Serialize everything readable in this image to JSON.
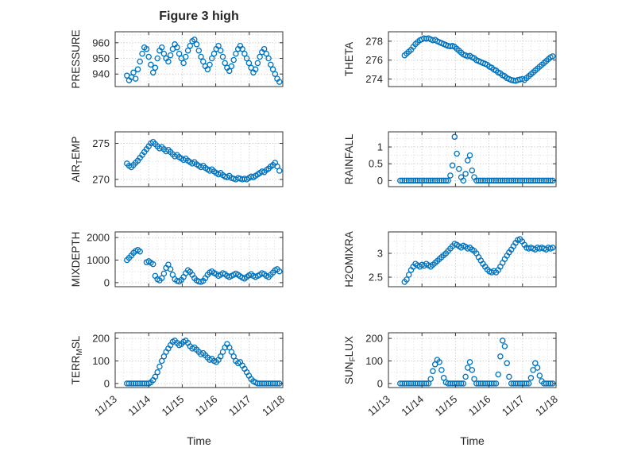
{
  "figure": {
    "title": "Figure 3 high",
    "xlabel": "Time",
    "marker_color": "#0072BD",
    "axis_color": "#333333",
    "text_color": "#262626",
    "grid_color": "#bdbdbd",
    "minor_grid_color": "#dcdcdc",
    "grid_style": "dotted-major-and-minor",
    "legend": "none"
  },
  "chart_data": {
    "type": "scatter",
    "marker": "o",
    "x_axis": {
      "start": 0.35,
      "step": 0.065,
      "lim": [
        0,
        5
      ],
      "tick_values": [
        0,
        1,
        2,
        3,
        4,
        5
      ],
      "tick_labels": [
        "11/13",
        "11/14",
        "11/15",
        "11/16",
        "11/17",
        "11/18"
      ],
      "minor_step": 0.25
    },
    "charts": [
      {
        "name": "PRESSURE",
        "ylabel_segments": [
          {
            "t": "PRESSURE"
          }
        ],
        "ylim": [
          932,
          967
        ],
        "yticks": [
          {
            "v": 940,
            "label": "940"
          },
          {
            "v": 950,
            "label": "950"
          },
          {
            "v": 960,
            "label": "960"
          }
        ],
        "values": [
          939,
          936,
          938,
          941,
          937,
          943,
          948,
          953,
          957,
          956,
          951,
          946,
          941,
          944,
          950,
          955,
          957,
          953,
          950,
          948,
          952,
          956,
          959,
          957,
          953,
          950,
          947,
          951,
          955,
          958,
          961,
          962,
          959,
          955,
          951,
          948,
          945,
          943,
          946,
          950,
          953,
          956,
          958,
          955,
          951,
          947,
          944,
          942,
          945,
          949,
          953,
          956,
          958,
          956,
          953,
          950,
          947,
          944,
          941,
          943,
          947,
          951,
          954,
          956,
          953,
          950,
          946,
          943,
          940,
          937,
          935
        ]
      },
      {
        "name": "THETA",
        "ylabel_segments": [
          {
            "t": "THETA"
          }
        ],
        "ylim": [
          273.2,
          279
        ],
        "yticks": [
          {
            "v": 274,
            "label": "274"
          },
          {
            "v": 276,
            "label": "276"
          },
          {
            "v": 278,
            "label": "278"
          }
        ],
        "values": [
          null,
          null,
          276.5,
          276.7,
          276.9,
          277.1,
          277.4,
          277.7,
          277.9,
          278.1,
          278.2,
          278.3,
          278.25,
          278.3,
          278.2,
          278.1,
          278.15,
          278,
          277.9,
          277.8,
          277.7,
          277.6,
          277.5,
          277.45,
          277.5,
          277.4,
          277.2,
          277,
          276.8,
          276.6,
          276.5,
          276.4,
          276.45,
          276.3,
          276.2,
          276,
          275.9,
          275.8,
          275.7,
          275.6,
          275.5,
          275.3,
          275.2,
          275,
          274.9,
          274.7,
          274.6,
          274.4,
          274.3,
          274.1,
          274,
          273.9,
          273.85,
          273.8,
          273.9,
          273.95,
          274,
          273.9,
          274.1,
          274.3,
          274.5,
          274.7,
          274.9,
          275.1,
          275.3,
          275.5,
          275.7,
          275.9,
          276.1,
          276.3,
          276.4
        ]
      },
      {
        "name": "AIR_TEMP",
        "ylabel_segments": [
          {
            "t": "AIR"
          },
          {
            "t": "T",
            "sub": true
          },
          {
            "t": "EMP"
          }
        ],
        "ylim": [
          269,
          276.6
        ],
        "yticks": [
          {
            "v": 270,
            "label": "270"
          },
          {
            "v": 275,
            "label": "275"
          }
        ],
        "values": [
          272.2,
          271.9,
          271.7,
          272,
          272.3,
          272.6,
          273,
          273.4,
          273.8,
          274.2,
          274.6,
          275,
          275.2,
          274.9,
          274.6,
          274.3,
          274.5,
          274.2,
          273.9,
          274.1,
          273.8,
          273.5,
          273.2,
          273.4,
          273.1,
          272.9,
          272.7,
          272.9,
          272.6,
          272.4,
          272.2,
          272.4,
          272.1,
          271.9,
          271.7,
          271.9,
          271.6,
          271.4,
          271.2,
          271.4,
          271.1,
          270.9,
          270.7,
          270.9,
          270.6,
          270.4,
          270.3,
          270.5,
          270.2,
          270.1,
          270,
          270.2,
          270.1,
          270,
          270.1,
          270,
          270.2,
          270.4,
          270.3,
          270.5,
          270.7,
          270.9,
          271.1,
          271,
          271.3,
          271.5,
          271.8,
          272,
          272.3,
          271.8,
          271.2
        ]
      },
      {
        "name": "RAINFALL",
        "ylabel_segments": [
          {
            "t": "RAINFALL"
          }
        ],
        "ylim": [
          -0.18,
          1.45
        ],
        "yticks": [
          {
            "v": 0,
            "label": "0"
          },
          {
            "v": 0.5,
            "label": "0.5"
          },
          {
            "v": 1,
            "label": "1"
          }
        ],
        "values": [
          0,
          0,
          0,
          0,
          0,
          0,
          0,
          0,
          0,
          0,
          0,
          0,
          0,
          0,
          0,
          0,
          0,
          0,
          0,
          0,
          0,
          0,
          0,
          0.15,
          0.45,
          1.3,
          0.8,
          0.35,
          0.1,
          0,
          0.2,
          0.6,
          0.75,
          0.3,
          0.1,
          0,
          0,
          0,
          0,
          0,
          0,
          0,
          0,
          0,
          0,
          0,
          0,
          0,
          0,
          0,
          0,
          0,
          0,
          0,
          0,
          0,
          0,
          0,
          0,
          0,
          0,
          0,
          0,
          0,
          0,
          0,
          0,
          0,
          0,
          0,
          0
        ]
      },
      {
        "name": "MIXDEPTH",
        "ylabel_segments": [
          {
            "t": "MIXDEPTH"
          }
        ],
        "ylim": [
          -180,
          2250
        ],
        "yticks": [
          {
            "v": 0,
            "label": "0"
          },
          {
            "v": 1000,
            "label": "1000"
          },
          {
            "v": 2000,
            "label": "2000"
          }
        ],
        "values": [
          1000,
          1100,
          1200,
          1320,
          1400,
          1450,
          1380,
          null,
          null,
          900,
          950,
          880,
          820,
          300,
          150,
          100,
          200,
          400,
          650,
          800,
          600,
          350,
          150,
          80,
          50,
          120,
          250,
          420,
          550,
          480,
          350,
          200,
          100,
          50,
          30,
          80,
          200,
          350,
          450,
          500,
          430,
          380,
          300,
          350,
          420,
          380,
          300,
          250,
          300,
          350,
          400,
          350,
          280,
          220,
          180,
          250,
          320,
          380,
          300,
          250,
          300,
          350,
          420,
          380,
          300,
          250,
          350,
          450,
          550,
          600,
          500
        ]
      },
      {
        "name": "H2OMIXRA",
        "ylabel_segments": [
          {
            "t": "H2OMIXRA"
          }
        ],
        "ylim": [
          2.3,
          3.45
        ],
        "yticks": [
          {
            "v": 2.5,
            "label": "2.5"
          },
          {
            "v": 3,
            "label": "3"
          }
        ],
        "values": [
          null,
          null,
          2.4,
          2.45,
          2.55,
          2.65,
          2.72,
          2.78,
          2.75,
          2.72,
          2.76,
          2.74,
          2.78,
          2.75,
          2.72,
          2.76,
          2.8,
          2.84,
          2.88,
          2.92,
          2.96,
          3,
          3.05,
          3.1,
          3.15,
          3.2,
          3.18,
          3.15,
          3.12,
          3.16,
          3.14,
          3.1,
          3.12,
          3.08,
          3.05,
          3,
          2.92,
          2.85,
          2.78,
          2.72,
          2.66,
          2.62,
          2.6,
          2.63,
          2.6,
          2.65,
          2.72,
          2.8,
          2.88,
          2.95,
          3.02,
          3.08,
          3.15,
          3.22,
          3.28,
          3.3,
          3.25,
          3.18,
          3.12,
          3.1,
          3.12,
          3.1,
          3.08,
          3.12,
          3.1,
          3.12,
          3.1,
          3.08,
          3.12,
          3.1,
          3.12
        ]
      },
      {
        "name": "TERR_MSL",
        "ylabel_segments": [
          {
            "t": "TERR"
          },
          {
            "t": "M",
            "sub": true
          },
          {
            "t": "SL"
          }
        ],
        "ylim": [
          -18,
          225
        ],
        "yticks": [
          {
            "v": 0,
            "label": "0"
          },
          {
            "v": 100,
            "label": "100"
          },
          {
            "v": 200,
            "label": "200"
          }
        ],
        "values": [
          0,
          0,
          0,
          0,
          0,
          0,
          0,
          0,
          0,
          0,
          0,
          5,
          15,
          30,
          50,
          75,
          100,
          120,
          140,
          155,
          170,
          185,
          190,
          180,
          170,
          175,
          185,
          190,
          180,
          165,
          155,
          160,
          150,
          140,
          130,
          135,
          125,
          115,
          105,
          110,
          100,
          95,
          105,
          120,
          140,
          160,
          175,
          160,
          140,
          120,
          100,
          90,
          95,
          80,
          65,
          50,
          35,
          20,
          10,
          5,
          0,
          0,
          0,
          0,
          0,
          0,
          0,
          0,
          0,
          0,
          0
        ]
      },
      {
        "name": "SUN_FLUX",
        "ylabel_segments": [
          {
            "t": "SUN"
          },
          {
            "t": "F",
            "sub": true
          },
          {
            "t": "LUX"
          }
        ],
        "ylim": [
          -18,
          225
        ],
        "yticks": [
          {
            "v": 0,
            "label": "0"
          },
          {
            "v": 100,
            "label": "100"
          },
          {
            "v": 200,
            "label": "200"
          }
        ],
        "values": [
          0,
          0,
          0,
          0,
          0,
          0,
          0,
          0,
          0,
          0,
          0,
          0,
          0,
          0,
          20,
          55,
          85,
          105,
          95,
          60,
          25,
          5,
          0,
          0,
          0,
          0,
          0,
          0,
          0,
          0,
          30,
          70,
          95,
          60,
          20,
          0,
          0,
          0,
          0,
          0,
          0,
          0,
          0,
          0,
          0,
          40,
          120,
          190,
          165,
          90,
          30,
          0,
          0,
          0,
          0,
          0,
          0,
          0,
          0,
          0,
          25,
          60,
          90,
          70,
          35,
          10,
          0,
          0,
          0,
          0,
          0
        ]
      }
    ]
  }
}
